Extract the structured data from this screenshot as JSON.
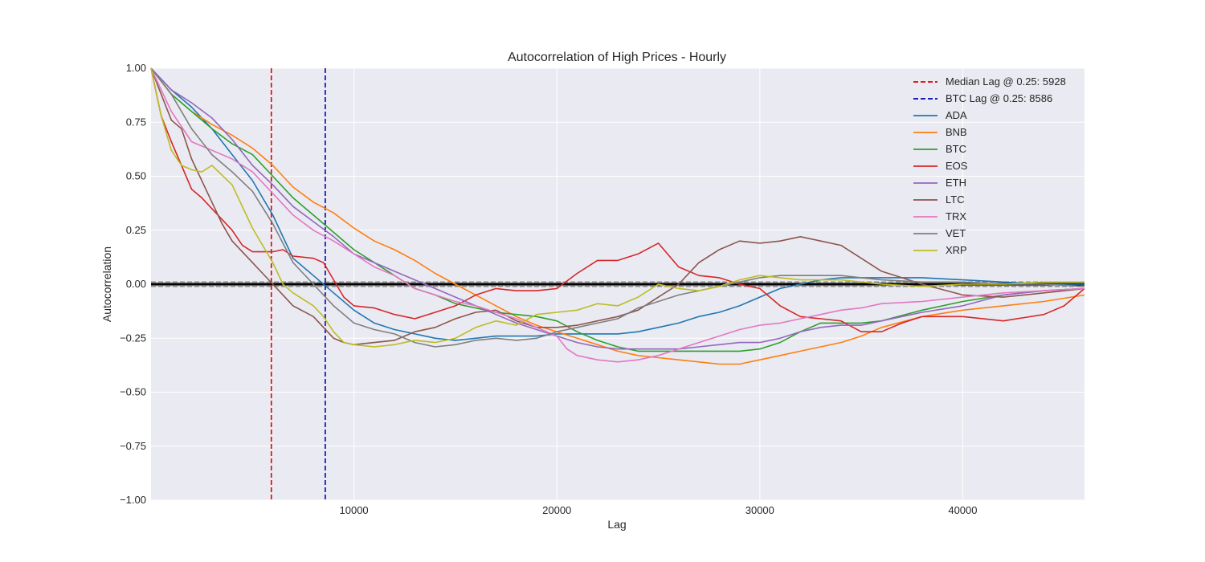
{
  "chart_data": {
    "type": "line",
    "title": "Autocorrelation of High Prices - Hourly",
    "xlabel": "Lag",
    "ylabel": "Autocorrelation",
    "xlim": [
      0,
      46000
    ],
    "ylim": [
      -1.0,
      1.0
    ],
    "x_ticks": [
      10000,
      20000,
      30000,
      40000
    ],
    "x_tick_labels": [
      "10000",
      "20000",
      "30000",
      "40000"
    ],
    "y_ticks": [
      1.0,
      0.75,
      0.5,
      0.25,
      0.0,
      -0.25,
      -0.5,
      -0.75,
      -1.0
    ],
    "y_tick_labels": [
      "1.00",
      "0.75",
      "0.50",
      "0.25",
      "0.00",
      "−0.25",
      "−0.50",
      "−0.75",
      "−1.00"
    ],
    "grid": true,
    "background": "#eaeaf2",
    "legend_position": "top-right",
    "vlines": [
      {
        "label": "Median Lag @ 0.25: 5928",
        "x": 5928,
        "color": "#e00000",
        "style": "dashed"
      },
      {
        "label": "BTC Lag @ 0.25: 8586",
        "x": 8586,
        "color": "#0000b0",
        "style": "dashed"
      }
    ],
    "confidence_band": [
      -0.01,
      0.01
    ],
    "series": [
      {
        "name": "ADA",
        "color": "#1f77b4",
        "x": [
          0,
          1000,
          2000,
          3000,
          4000,
          5000,
          6000,
          7000,
          8000,
          9000,
          10000,
          11000,
          12000,
          13000,
          14000,
          15000,
          16000,
          17000,
          18000,
          19000,
          20000,
          21000,
          22000,
          23000,
          24000,
          25000,
          26000,
          27000,
          28000,
          29000,
          30000,
          31000,
          32000,
          33000,
          34000,
          35000,
          36000,
          38000,
          40000,
          42000,
          44000,
          46000
        ],
        "y": [
          1.0,
          0.9,
          0.82,
          0.72,
          0.6,
          0.48,
          0.32,
          0.12,
          0.04,
          -0.04,
          -0.12,
          -0.18,
          -0.21,
          -0.23,
          -0.25,
          -0.26,
          -0.25,
          -0.24,
          -0.24,
          -0.24,
          -0.23,
          -0.23,
          -0.23,
          -0.23,
          -0.22,
          -0.2,
          -0.18,
          -0.15,
          -0.13,
          -0.1,
          -0.06,
          -0.02,
          0.0,
          0.02,
          0.03,
          0.03,
          0.03,
          0.03,
          0.02,
          0.01,
          0.0,
          0.0
        ]
      },
      {
        "name": "BNB",
        "color": "#ff7f0e",
        "x": [
          0,
          1000,
          2000,
          3000,
          4000,
          5000,
          6000,
          7000,
          8000,
          9000,
          10000,
          11000,
          12000,
          13000,
          14000,
          15000,
          16000,
          17000,
          18000,
          19000,
          20000,
          21000,
          22000,
          23000,
          24000,
          25000,
          26000,
          27000,
          28000,
          29000,
          30000,
          31000,
          32000,
          33000,
          34000,
          35000,
          36000,
          38000,
          40000,
          42000,
          44000,
          46000
        ],
        "y": [
          1.0,
          0.88,
          0.8,
          0.74,
          0.69,
          0.63,
          0.55,
          0.45,
          0.38,
          0.33,
          0.26,
          0.2,
          0.16,
          0.11,
          0.05,
          0.0,
          -0.05,
          -0.1,
          -0.15,
          -0.19,
          -0.22,
          -0.25,
          -0.28,
          -0.31,
          -0.33,
          -0.34,
          -0.35,
          -0.36,
          -0.37,
          -0.37,
          -0.35,
          -0.33,
          -0.31,
          -0.29,
          -0.27,
          -0.24,
          -0.2,
          -0.15,
          -0.12,
          -0.1,
          -0.08,
          -0.05
        ]
      },
      {
        "name": "BTC",
        "color": "#2ca02c",
        "x": [
          0,
          1000,
          2000,
          3000,
          4000,
          5000,
          6000,
          7000,
          8000,
          9000,
          10000,
          11000,
          12000,
          13000,
          14000,
          15000,
          16000,
          17000,
          18000,
          19000,
          20000,
          21000,
          22000,
          23000,
          24000,
          25000,
          26000,
          27000,
          28000,
          29000,
          30000,
          31000,
          32000,
          33000,
          34000,
          35000,
          36000,
          38000,
          40000,
          42000,
          44000,
          46000
        ],
        "y": [
          1.0,
          0.88,
          0.8,
          0.72,
          0.65,
          0.6,
          0.5,
          0.4,
          0.32,
          0.24,
          0.16,
          0.1,
          0.04,
          -0.02,
          -0.05,
          -0.09,
          -0.11,
          -0.13,
          -0.14,
          -0.15,
          -0.17,
          -0.22,
          -0.26,
          -0.29,
          -0.31,
          -0.31,
          -0.31,
          -0.31,
          -0.31,
          -0.31,
          -0.3,
          -0.27,
          -0.22,
          -0.18,
          -0.18,
          -0.18,
          -0.17,
          -0.12,
          -0.08,
          -0.05,
          -0.03,
          -0.02
        ]
      },
      {
        "name": "EOS",
        "color": "#d62728",
        "x": [
          0,
          500,
          1000,
          1500,
          2000,
          2500,
          3000,
          4000,
          4500,
          5000,
          6000,
          6500,
          7000,
          8000,
          8500,
          9000,
          9500,
          10000,
          11000,
          12000,
          13000,
          14000,
          15000,
          16000,
          17000,
          18000,
          19000,
          20000,
          21000,
          22000,
          23000,
          24000,
          25000,
          26000,
          27000,
          28000,
          29000,
          30000,
          31000,
          32000,
          33000,
          34000,
          35000,
          36000,
          37000,
          38000,
          40000,
          42000,
          44000,
          45000,
          46000
        ],
        "y": [
          1.0,
          0.78,
          0.66,
          0.55,
          0.44,
          0.4,
          0.35,
          0.25,
          0.18,
          0.15,
          0.15,
          0.16,
          0.13,
          0.12,
          0.1,
          0.02,
          -0.06,
          -0.1,
          -0.11,
          -0.14,
          -0.16,
          -0.13,
          -0.1,
          -0.05,
          -0.02,
          -0.03,
          -0.03,
          -0.02,
          0.05,
          0.11,
          0.11,
          0.14,
          0.19,
          0.08,
          0.04,
          0.03,
          0.0,
          -0.02,
          -0.1,
          -0.15,
          -0.16,
          -0.17,
          -0.22,
          -0.22,
          -0.18,
          -0.15,
          -0.15,
          -0.17,
          -0.14,
          -0.1,
          -0.02
        ]
      },
      {
        "name": "ETH",
        "color": "#9467bd",
        "x": [
          0,
          1000,
          2000,
          3000,
          4000,
          5000,
          6000,
          7000,
          8000,
          9000,
          10000,
          11000,
          12000,
          13000,
          14000,
          15000,
          16000,
          17000,
          18000,
          19000,
          20000,
          21000,
          22000,
          23000,
          24000,
          25000,
          26000,
          27000,
          28000,
          29000,
          30000,
          31000,
          32000,
          33000,
          34000,
          35000,
          36000,
          38000,
          40000,
          42000,
          44000,
          46000
        ],
        "y": [
          1.0,
          0.9,
          0.84,
          0.77,
          0.67,
          0.55,
          0.46,
          0.36,
          0.29,
          0.22,
          0.14,
          0.1,
          0.06,
          0.02,
          -0.02,
          -0.06,
          -0.1,
          -0.14,
          -0.18,
          -0.21,
          -0.24,
          -0.27,
          -0.29,
          -0.3,
          -0.3,
          -0.3,
          -0.3,
          -0.29,
          -0.28,
          -0.27,
          -0.27,
          -0.25,
          -0.22,
          -0.2,
          -0.19,
          -0.19,
          -0.17,
          -0.13,
          -0.1,
          -0.05,
          -0.03,
          -0.02
        ]
      },
      {
        "name": "LTC",
        "color": "#8c564b",
        "x": [
          0,
          500,
          1000,
          1500,
          2000,
          3000,
          3500,
          4000,
          5000,
          5500,
          6000,
          6500,
          7000,
          8000,
          8500,
          9000,
          9500,
          10000,
          11000,
          12000,
          13000,
          14000,
          15000,
          16000,
          17000,
          18000,
          19000,
          20000,
          21000,
          22000,
          23000,
          24000,
          25000,
          26000,
          27000,
          28000,
          29000,
          30000,
          31000,
          32000,
          33000,
          34000,
          35000,
          36000,
          37000,
          38000,
          40000,
          42000,
          44000,
          46000
        ],
        "y": [
          1.0,
          0.88,
          0.76,
          0.72,
          0.58,
          0.38,
          0.28,
          0.2,
          0.1,
          0.05,
          0.0,
          -0.05,
          -0.1,
          -0.15,
          -0.2,
          -0.25,
          -0.27,
          -0.28,
          -0.27,
          -0.26,
          -0.22,
          -0.2,
          -0.16,
          -0.13,
          -0.12,
          -0.17,
          -0.2,
          -0.2,
          -0.19,
          -0.17,
          -0.15,
          -0.12,
          -0.06,
          0.0,
          0.1,
          0.16,
          0.2,
          0.19,
          0.2,
          0.22,
          0.2,
          0.18,
          0.12,
          0.06,
          0.03,
          0.0,
          -0.05,
          -0.06,
          -0.04,
          -0.02
        ]
      },
      {
        "name": "TRX",
        "color": "#e377c2",
        "x": [
          0,
          1000,
          2000,
          3000,
          4000,
          5000,
          6000,
          7000,
          8000,
          9000,
          10000,
          11000,
          12000,
          13000,
          14000,
          15000,
          16000,
          17000,
          18000,
          19000,
          20000,
          20500,
          21000,
          22000,
          23000,
          24000,
          25000,
          26000,
          27000,
          28000,
          29000,
          30000,
          31000,
          32000,
          33000,
          34000,
          35000,
          36000,
          38000,
          40000,
          42000,
          44000,
          46000
        ],
        "y": [
          1.0,
          0.8,
          0.66,
          0.62,
          0.58,
          0.52,
          0.42,
          0.32,
          0.25,
          0.2,
          0.14,
          0.08,
          0.04,
          -0.02,
          -0.05,
          -0.08,
          -0.1,
          -0.13,
          -0.16,
          -0.2,
          -0.24,
          -0.3,
          -0.33,
          -0.35,
          -0.36,
          -0.35,
          -0.33,
          -0.3,
          -0.27,
          -0.24,
          -0.21,
          -0.19,
          -0.18,
          -0.16,
          -0.14,
          -0.12,
          -0.11,
          -0.09,
          -0.08,
          -0.06,
          -0.04,
          -0.03,
          -0.02
        ]
      },
      {
        "name": "VET",
        "color": "#7f7f7f",
        "x": [
          0,
          1000,
          2000,
          3000,
          4000,
          5000,
          6000,
          7000,
          8000,
          9000,
          10000,
          11000,
          12000,
          13000,
          14000,
          15000,
          16000,
          17000,
          18000,
          19000,
          20000,
          21000,
          22000,
          23000,
          24000,
          25000,
          26000,
          27000,
          28000,
          29000,
          30000,
          31000,
          32000,
          33000,
          34000,
          35000,
          36000,
          38000,
          40000,
          42000,
          44000,
          46000
        ],
        "y": [
          1.0,
          0.88,
          0.72,
          0.6,
          0.52,
          0.43,
          0.28,
          0.1,
          0.0,
          -0.1,
          -0.18,
          -0.21,
          -0.23,
          -0.27,
          -0.29,
          -0.28,
          -0.26,
          -0.25,
          -0.26,
          -0.25,
          -0.22,
          -0.2,
          -0.18,
          -0.16,
          -0.11,
          -0.08,
          -0.05,
          -0.03,
          -0.01,
          0.01,
          0.03,
          0.04,
          0.04,
          0.04,
          0.04,
          0.03,
          0.02,
          0.01,
          0.01,
          0.0,
          0.0,
          -0.01
        ]
      },
      {
        "name": "XRP",
        "color": "#bcbd22",
        "x": [
          0,
          500,
          1000,
          1500,
          2000,
          2500,
          3000,
          4000,
          5000,
          6000,
          6500,
          7000,
          8000,
          8500,
          9000,
          9500,
          10000,
          11000,
          12000,
          13000,
          14000,
          15000,
          16000,
          17000,
          18000,
          19000,
          20000,
          21000,
          22000,
          23000,
          24000,
          25000,
          26000,
          27000,
          28000,
          29000,
          30000,
          31000,
          32000,
          33000,
          34000,
          35000,
          36000,
          38000,
          40000,
          42000,
          44000,
          46000
        ],
        "y": [
          1.0,
          0.78,
          0.62,
          0.55,
          0.53,
          0.52,
          0.55,
          0.46,
          0.26,
          0.1,
          0.0,
          -0.04,
          -0.1,
          -0.15,
          -0.22,
          -0.27,
          -0.28,
          -0.29,
          -0.28,
          -0.26,
          -0.27,
          -0.25,
          -0.2,
          -0.17,
          -0.19,
          -0.14,
          -0.13,
          -0.12,
          -0.09,
          -0.1,
          -0.06,
          0.0,
          -0.02,
          -0.03,
          -0.01,
          0.02,
          0.04,
          0.03,
          0.02,
          0.02,
          0.02,
          0.01,
          0.0,
          -0.01,
          0.0,
          0.0,
          0.01,
          0.01
        ]
      }
    ]
  }
}
